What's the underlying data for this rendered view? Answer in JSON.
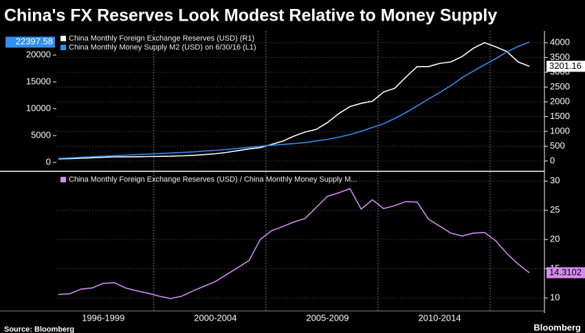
{
  "title": "China's FX Reserves Look Modest Relative to Money Supply",
  "source": "Source: Bloomberg",
  "brand": "Bloomberg",
  "chart_data": [
    {
      "type": "line",
      "categories": [
        null,
        null,
        null,
        null,
        "1996-1999",
        null,
        null,
        null,
        null,
        null,
        null,
        null,
        null,
        null,
        "2000-2004",
        null,
        null,
        null,
        null,
        null,
        null,
        null,
        null,
        null,
        "2005-2009",
        null,
        null,
        null,
        null,
        null,
        null,
        null,
        null,
        null,
        "2010-2014",
        null,
        null,
        null,
        null,
        null,
        null,
        null,
        null
      ],
      "series": [
        {
          "name": "China Monthly Foreign Exchange Reserves (USD)  (R1)",
          "color": "#ffffff",
          "axis": "y2",
          "values": [
            70,
            80,
            95,
            110,
            125,
            140,
            142,
            145,
            150,
            155,
            160,
            175,
            190,
            215,
            245,
            290,
            350,
            410,
            450,
            560,
            670,
            840,
            980,
            1070,
            1300,
            1600,
            1840,
            1950,
            2020,
            2330,
            2460,
            2840,
            3190,
            3190,
            3300,
            3350,
            3530,
            3810,
            4000,
            3860,
            3700,
            3350,
            3201.16
          ]
        },
        {
          "name": "China Monthly Money Supply M2 (USD)  on 6/30/16 (L1)",
          "color": "#2f8ef0",
          "values": [
            750,
            850,
            950,
            1050,
            1150,
            1250,
            1350,
            1450,
            1550,
            1650,
            1750,
            1850,
            1950,
            2100,
            2250,
            2400,
            2600,
            2800,
            3000,
            3200,
            3350,
            3500,
            3700,
            4000,
            4300,
            4700,
            5200,
            5800,
            6500,
            7200,
            8200,
            9300,
            10500,
            11800,
            13000,
            14300,
            15800,
            17000,
            18200,
            19300,
            20600,
            21600,
            22397.58
          ]
        }
      ],
      "ylim": [
        -1150,
        24100
      ],
      "yticks": [
        0,
        5000,
        10000,
        15000,
        20000
      ],
      "y2lim": [
        -256,
        4326
      ],
      "y2ticks": [
        0,
        500,
        1000,
        1500,
        2000,
        2500,
        3000,
        3500,
        4000
      ],
      "grid": true,
      "legend": "top-left"
    },
    {
      "type": "line",
      "categories": [
        null,
        null,
        null,
        null,
        "1996-1999",
        null,
        null,
        null,
        null,
        null,
        null,
        null,
        null,
        null,
        "2000-2004",
        null,
        null,
        null,
        null,
        null,
        null,
        null,
        null,
        null,
        "2005-2009",
        null,
        null,
        null,
        null,
        null,
        null,
        null,
        null,
        null,
        "2010-2014",
        null,
        null,
        null,
        null,
        null,
        null,
        null,
        null
      ],
      "series": [
        {
          "name": "China Monthly Foreign Exchange Reserves (USD) / China Monthly Money Supply M...",
          "color": "#d58cf0",
          "values": [
            10.6,
            10.7,
            11.5,
            11.7,
            12.5,
            12.6,
            11.7,
            11.2,
            10.8,
            10.3,
            9.9,
            10.3,
            11.2,
            12.0,
            12.8,
            14.0,
            15.2,
            16.4,
            20.0,
            21.5,
            22.2,
            23.0,
            23.6,
            25.5,
            27.4,
            28.0,
            28.7,
            25.2,
            26.8,
            25.3,
            25.8,
            26.5,
            26.4,
            23.5,
            22.3,
            21.1,
            20.6,
            21.1,
            21.2,
            19.8,
            17.6,
            15.8,
            14.3102
          ]
        }
      ],
      "ylim": [
        8,
        31.2
      ],
      "yticks": [
        10,
        15,
        20,
        25,
        30
      ],
      "y_axis_side": "right",
      "grid": true,
      "legend": "top-left"
    }
  ]
}
